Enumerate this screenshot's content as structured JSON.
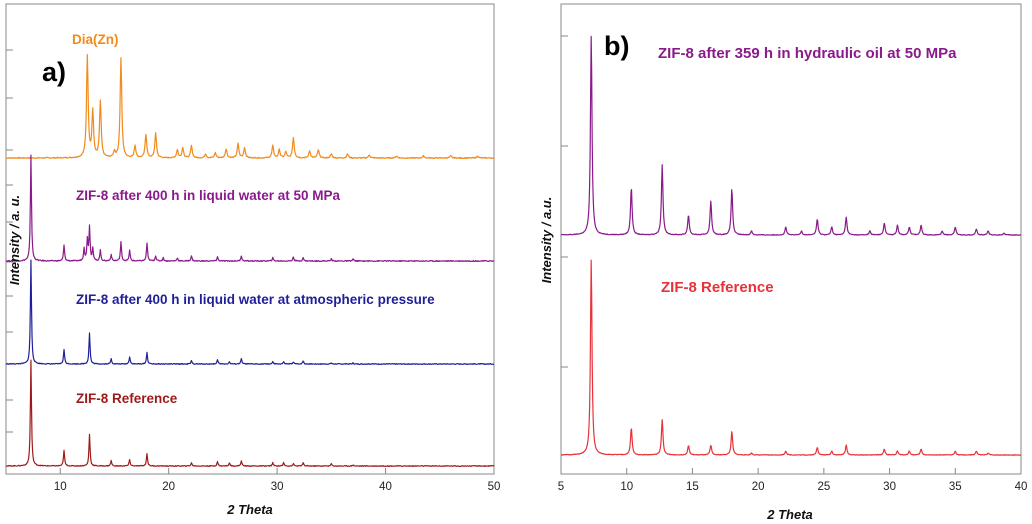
{
  "chart_data": [
    {
      "type": "line",
      "panel": "a)",
      "xlabel": "2 Theta",
      "ylabel": "Intensity / a. u.",
      "xlim": [
        5,
        50
      ],
      "xticks": [
        10,
        20,
        30,
        40,
        50
      ],
      "y_tick_labels": "none",
      "legend": "labels placed above each trace",
      "series": [
        {
          "name": "Dia(Zn)",
          "color": "#f28a1c",
          "peaks": [
            [
              12.5,
              1.0
            ],
            [
              13.0,
              0.45
            ],
            [
              13.7,
              0.55
            ],
            [
              15.0,
              0.06
            ],
            [
              15.6,
              0.98
            ],
            [
              16.9,
              0.12
            ],
            [
              17.9,
              0.23
            ],
            [
              18.8,
              0.24
            ],
            [
              20.8,
              0.08
            ],
            [
              21.3,
              0.1
            ],
            [
              22.1,
              0.12
            ],
            [
              23.4,
              0.04
            ],
            [
              24.3,
              0.05
            ],
            [
              25.3,
              0.09
            ],
            [
              26.4,
              0.14
            ],
            [
              27.0,
              0.1
            ],
            [
              29.6,
              0.12
            ],
            [
              30.2,
              0.08
            ],
            [
              30.8,
              0.06
            ],
            [
              31.5,
              0.2
            ],
            [
              33.0,
              0.07
            ],
            [
              33.8,
              0.08
            ],
            [
              35.0,
              0.04
            ],
            [
              36.5,
              0.04
            ],
            [
              38.5,
              0.03
            ],
            [
              41.0,
              0.02
            ],
            [
              43.5,
              0.02
            ],
            [
              46.0,
              0.02
            ],
            [
              48.5,
              0.02
            ]
          ]
        },
        {
          "name": "ZIF-8 after 400 h in liquid water at 50 MPa",
          "color": "#8a1a8c",
          "peaks": [
            [
              7.3,
              1.0
            ],
            [
              10.35,
              0.15
            ],
            [
              12.2,
              0.12
            ],
            [
              12.5,
              0.2
            ],
            [
              12.7,
              0.32
            ],
            [
              13.0,
              0.12
            ],
            [
              13.7,
              0.1
            ],
            [
              14.7,
              0.06
            ],
            [
              15.6,
              0.18
            ],
            [
              16.4,
              0.1
            ],
            [
              18.0,
              0.17
            ],
            [
              18.8,
              0.05
            ],
            [
              19.5,
              0.03
            ],
            [
              20.8,
              0.03
            ],
            [
              22.1,
              0.05
            ],
            [
              24.5,
              0.04
            ],
            [
              26.7,
              0.05
            ],
            [
              29.6,
              0.03
            ],
            [
              31.5,
              0.04
            ],
            [
              32.4,
              0.03
            ],
            [
              35.0,
              0.02
            ],
            [
              37.0,
              0.02
            ]
          ]
        },
        {
          "name": "ZIF-8 after 400 h in liquid water at atmospheric pressure",
          "color": "#1f1f99",
          "peaks": [
            [
              7.3,
              1.0
            ],
            [
              10.35,
              0.14
            ],
            [
              12.7,
              0.3
            ],
            [
              14.7,
              0.05
            ],
            [
              16.4,
              0.07
            ],
            [
              18.0,
              0.11
            ],
            [
              22.1,
              0.03
            ],
            [
              24.5,
              0.04
            ],
            [
              25.6,
              0.02
            ],
            [
              26.7,
              0.05
            ],
            [
              29.6,
              0.02
            ],
            [
              30.6,
              0.02
            ],
            [
              31.5,
              0.02
            ],
            [
              32.4,
              0.03
            ],
            [
              35.0,
              0.01
            ],
            [
              37.0,
              0.01
            ]
          ]
        },
        {
          "name": "ZIF-8 Reference",
          "color": "#9e1a1a",
          "peaks": [
            [
              7.3,
              1.0
            ],
            [
              10.35,
              0.15
            ],
            [
              12.7,
              0.3
            ],
            [
              14.7,
              0.05
            ],
            [
              16.4,
              0.06
            ],
            [
              18.0,
              0.12
            ],
            [
              22.1,
              0.03
            ],
            [
              24.5,
              0.04
            ],
            [
              25.6,
              0.03
            ],
            [
              26.7,
              0.05
            ],
            [
              29.6,
              0.03
            ],
            [
              30.6,
              0.03
            ],
            [
              31.5,
              0.02
            ],
            [
              32.4,
              0.03
            ],
            [
              35.0,
              0.02
            ],
            [
              37.0,
              0.01
            ]
          ]
        }
      ]
    },
    {
      "type": "line",
      "panel": "b)",
      "xlabel": "2 Theta",
      "ylabel": "Intensity / a.u.",
      "xlim": [
        5,
        40
      ],
      "xticks": [
        5,
        10,
        15,
        20,
        25,
        30,
        35,
        40
      ],
      "y_tick_labels": "none",
      "legend": "labels placed above each trace",
      "series": [
        {
          "name": "ZIF-8 after 359 h in hydraulic oil at 50 MPa",
          "color": "#8a1a8c",
          "peaks": [
            [
              7.3,
              1.0
            ],
            [
              10.35,
              0.24
            ],
            [
              12.7,
              0.35
            ],
            [
              14.7,
              0.1
            ],
            [
              16.4,
              0.17
            ],
            [
              18.0,
              0.23
            ],
            [
              19.5,
              0.02
            ],
            [
              22.1,
              0.04
            ],
            [
              23.3,
              0.02
            ],
            [
              24.5,
              0.08
            ],
            [
              25.6,
              0.04
            ],
            [
              26.7,
              0.09
            ],
            [
              28.5,
              0.02
            ],
            [
              29.6,
              0.06
            ],
            [
              30.6,
              0.05
            ],
            [
              31.5,
              0.04
            ],
            [
              32.4,
              0.05
            ],
            [
              34.0,
              0.02
            ],
            [
              35.0,
              0.04
            ],
            [
              36.6,
              0.03
            ],
            [
              37.5,
              0.02
            ],
            [
              38.7,
              0.01
            ]
          ]
        },
        {
          "name": "ZIF-8 Reference",
          "color": "#e8323a",
          "peaks": [
            [
              7.3,
              1.0
            ],
            [
              10.35,
              0.14
            ],
            [
              12.7,
              0.18
            ],
            [
              14.7,
              0.05
            ],
            [
              16.4,
              0.05
            ],
            [
              18.0,
              0.12
            ],
            [
              19.5,
              0.01
            ],
            [
              22.1,
              0.02
            ],
            [
              24.5,
              0.04
            ],
            [
              25.6,
              0.02
            ],
            [
              26.7,
              0.05
            ],
            [
              29.6,
              0.03
            ],
            [
              30.6,
              0.02
            ],
            [
              31.5,
              0.02
            ],
            [
              32.4,
              0.03
            ],
            [
              35.0,
              0.02
            ],
            [
              36.6,
              0.02
            ],
            [
              37.5,
              0.01
            ]
          ]
        }
      ]
    }
  ]
}
